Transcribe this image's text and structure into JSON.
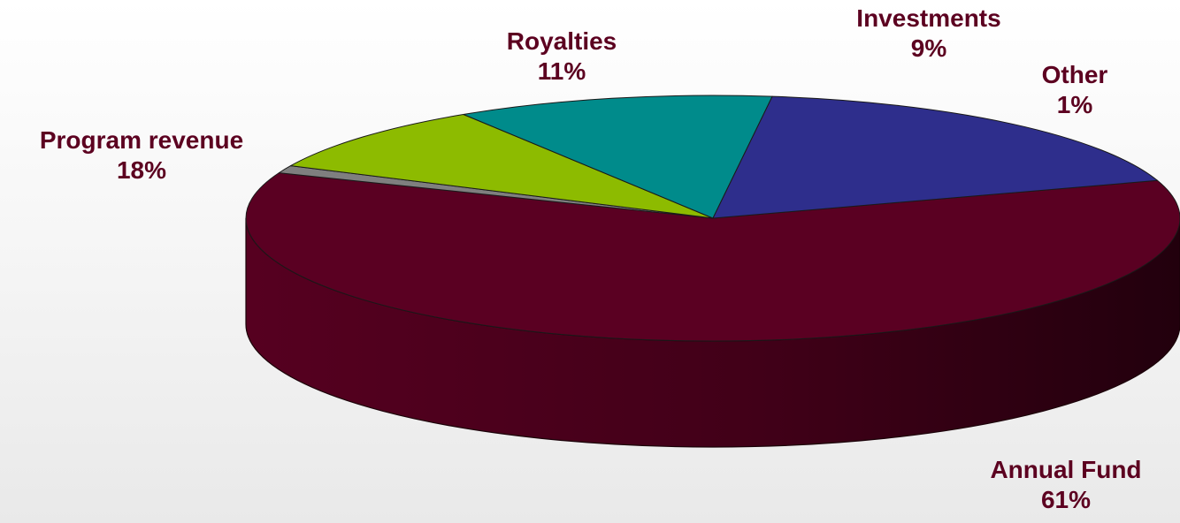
{
  "chart_data": {
    "type": "pie",
    "title": "",
    "label_color": "#5c0020",
    "slices": [
      {
        "label": "Annual Fund",
        "value": 61,
        "value_label": "61%",
        "color": "#5a0022"
      },
      {
        "label": "Other",
        "value": 1,
        "value_label": "1%",
        "color": "#7f7f7f"
      },
      {
        "label": "Investments",
        "value": 9,
        "value_label": "9%",
        "color": "#8dbb00"
      },
      {
        "label": "Royalties",
        "value": 11,
        "value_label": "11%",
        "color": "#008b8b"
      },
      {
        "label": "Program revenue",
        "value": 18,
        "value_label": "18%",
        "color": "#2e2e8c"
      }
    ]
  }
}
